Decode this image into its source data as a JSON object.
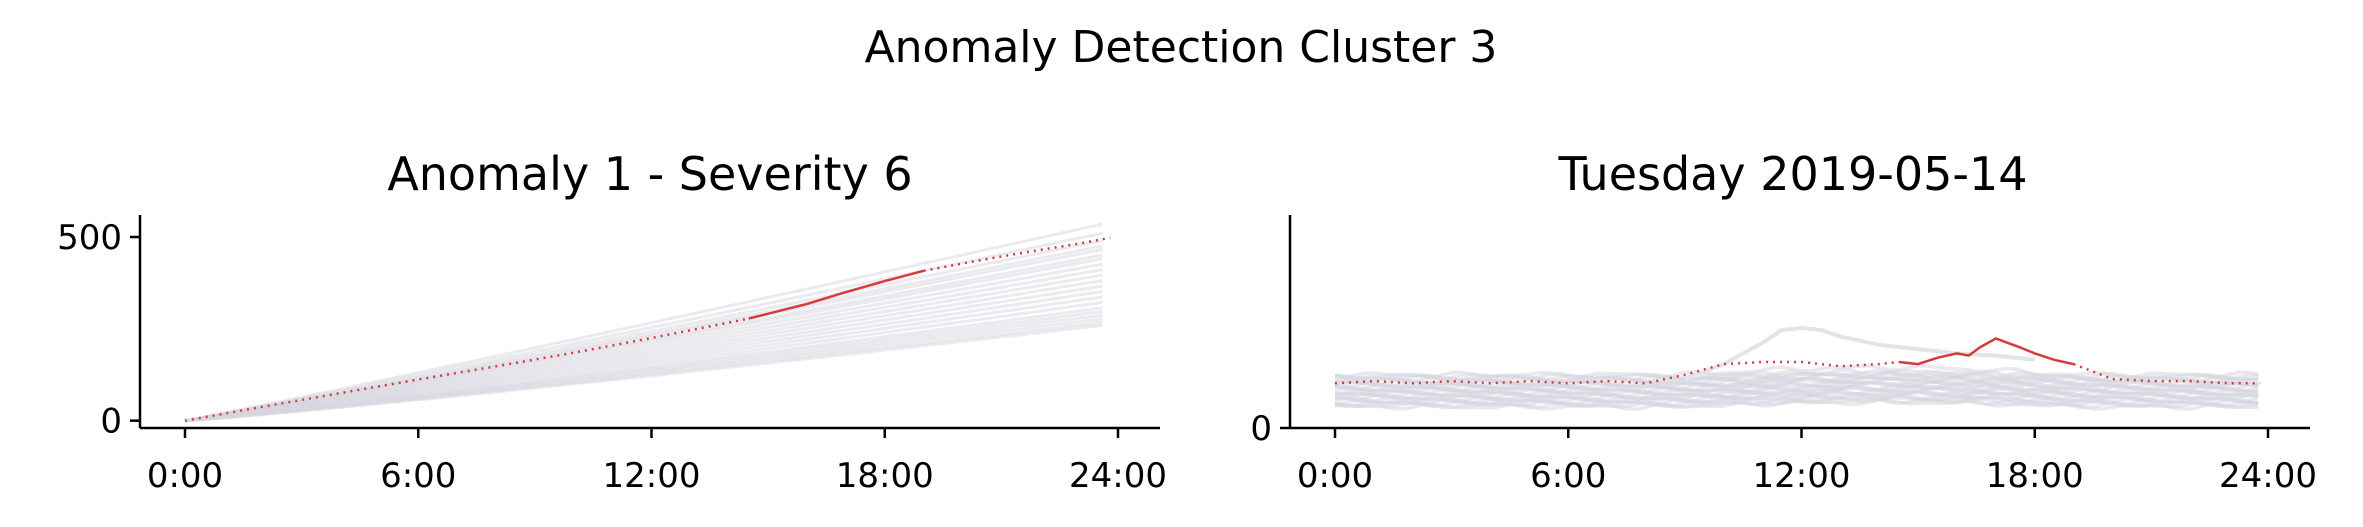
{
  "figure": {
    "title": "Anomaly Detection Cluster 3"
  },
  "chart_data": [
    {
      "type": "line",
      "title": "Anomaly 1 - Severity 6",
      "xlabel": "",
      "ylabel": "",
      "x_ticks": [
        "0:00",
        "6:00",
        "12:00",
        "18:00",
        "24:00"
      ],
      "y_ticks": [
        "0",
        "500"
      ],
      "xlim": [
        0,
        24
      ],
      "ylim": [
        -20,
        560
      ],
      "grid": false,
      "colors": {
        "background_series": "#d6d6e0",
        "highlight": "#d43c3c"
      },
      "background_series": [
        {
          "end": 540
        },
        {
          "end": 515
        },
        {
          "end": 495
        },
        {
          "end": 480
        },
        {
          "end": 470
        },
        {
          "end": 455
        },
        {
          "end": 445
        },
        {
          "end": 430
        },
        {
          "end": 415
        },
        {
          "end": 400
        },
        {
          "end": 385
        },
        {
          "end": 370
        },
        {
          "end": 355
        },
        {
          "end": 340
        },
        {
          "end": 325
        },
        {
          "end": 310
        },
        {
          "end": 300
        },
        {
          "end": 290
        },
        {
          "end": 280
        },
        {
          "end": 270
        },
        {
          "end": 262
        }
      ],
      "highlight_series": {
        "x": [
          0,
          2,
          4,
          6,
          8,
          10,
          12,
          14.5,
          16,
          17,
          18,
          19,
          20,
          21,
          22,
          23,
          23.8
        ],
        "y": [
          0,
          38,
          75,
          112,
          148,
          185,
          225,
          278,
          318,
          350,
          380,
          408,
          428,
          447,
          465,
          482,
          498
        ],
        "anomaly_range": [
          14.5,
          19
        ]
      }
    },
    {
      "type": "line",
      "title": "Tuesday 2019-05-14",
      "xlabel": "",
      "ylabel": "",
      "x_ticks": [
        "0:00",
        "6:00",
        "12:00",
        "18:00",
        "24:00"
      ],
      "y_ticks": [
        "0"
      ],
      "xlim": [
        0,
        24
      ],
      "ylim": [
        0,
        10
      ],
      "grid": false,
      "colors": {
        "background_series": "#d6d6e0",
        "highlight": "#d43c3c"
      },
      "background_band": {
        "low": 1.0,
        "high": 2.5
      },
      "background_bump": {
        "x": [
          9,
          10,
          11,
          11.5,
          12,
          12.5,
          13,
          14,
          15,
          16,
          17,
          18
        ],
        "y": [
          2.3,
          3.0,
          4.0,
          4.6,
          4.7,
          4.6,
          4.3,
          3.9,
          3.7,
          3.5,
          3.4,
          3.2
        ]
      },
      "highlight_series": {
        "x": [
          0,
          1,
          2,
          3,
          4,
          5,
          6,
          7,
          8,
          9,
          10,
          11,
          12,
          13,
          14,
          14.5,
          15,
          15.5,
          16,
          16.3,
          16.6,
          17,
          17.3,
          17.6,
          18,
          18.5,
          19,
          20,
          21,
          22,
          23,
          23.8
        ],
        "y": [
          2.1,
          2.2,
          2.1,
          2.2,
          2.1,
          2.2,
          2.1,
          2.2,
          2.1,
          2.5,
          3.0,
          3.1,
          3.1,
          2.9,
          3.0,
          3.1,
          3.0,
          3.3,
          3.5,
          3.4,
          3.8,
          4.2,
          4.0,
          3.8,
          3.5,
          3.2,
          3.0,
          2.3,
          2.2,
          2.2,
          2.1,
          2.1
        ],
        "anomaly_range": [
          14.5,
          19
        ]
      }
    }
  ]
}
